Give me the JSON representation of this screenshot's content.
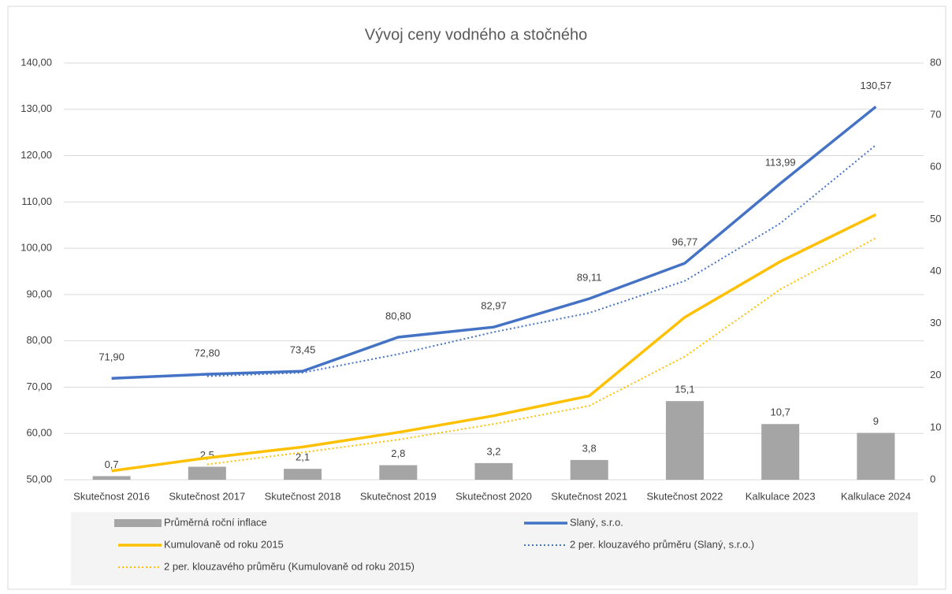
{
  "chart_data": {
    "type": "combo",
    "title": "Vývoj ceny vodného a stočného",
    "categories": [
      "Skutečnost 2016",
      "Skutečnost 2017",
      "Skutečnost 2018",
      "Skutečnost 2019",
      "Skutečnost 2020",
      "Skutečnost 2021",
      "Skutečnost 2022",
      "Kalkulace 2023",
      "Kalkulace 2024"
    ],
    "ylim": [
      50,
      140
    ],
    "yticks": [
      {
        "value": 50,
        "label": "50,00"
      },
      {
        "value": 60,
        "label": "60,00"
      },
      {
        "value": 70,
        "label": "70,00"
      },
      {
        "value": 80,
        "label": "80,00"
      },
      {
        "value": 90,
        "label": "90,00"
      },
      {
        "value": 100,
        "label": "100,00"
      },
      {
        "value": 110,
        "label": "110,00"
      },
      {
        "value": 120,
        "label": "120,00"
      },
      {
        "value": 130,
        "label": "130,00"
      },
      {
        "value": 140,
        "label": "140,00"
      }
    ],
    "y2lim": [
      0,
      80
    ],
    "y2ticks": [
      0,
      10,
      20,
      30,
      40,
      50,
      60,
      70,
      80
    ],
    "legend": "bottom",
    "series": [
      {
        "name": "Průměrná roční inflace",
        "type": "bar",
        "axis": "y2",
        "color": "#a5a5a5",
        "values": [
          0.7,
          2.5,
          2.1,
          2.8,
          3.2,
          3.8,
          15.1,
          10.7,
          9
        ],
        "value_labels": [
          "0,7",
          "2,5",
          "2,1",
          "2,8",
          "3,2",
          "3,8",
          "15,1",
          "10,7",
          "9"
        ]
      },
      {
        "name": "Slaný, s.r.o.",
        "type": "line",
        "axis": "y",
        "color": "#4472c4",
        "dash": "solid",
        "values": [
          71.9,
          72.8,
          73.45,
          80.8,
          82.97,
          89.11,
          96.77,
          113.99,
          130.57
        ],
        "value_labels": [
          "71,90",
          "72,80",
          "73,45",
          "80,80",
          "82,97",
          "89,11",
          "96,77",
          "113,99",
          "130,57"
        ]
      },
      {
        "name": "Kumulovaně od roku 2015",
        "type": "line",
        "axis": "y2",
        "color": "#ffc000",
        "dash": "solid",
        "values": [
          1.7,
          4.2,
          6.3,
          9.1,
          12.3,
          16.1,
          31.2,
          41.9,
          50.9
        ]
      },
      {
        "name": "2 per. klouzavého průměru (Slaný, s.r.o.)",
        "type": "line",
        "axis": "y",
        "color": "#4472c4",
        "dash": "dotted",
        "values": [
          null,
          72.35,
          73.125,
          77.125,
          81.885,
          86.04,
          92.94,
          105.38,
          122.28
        ]
      },
      {
        "name": "2 per. klouzavého průměru (Kumulovaně od roku 2015)",
        "type": "line",
        "axis": "y2",
        "color": "#ffc000",
        "dash": "dotted",
        "values": [
          null,
          2.95,
          5.25,
          7.7,
          10.7,
          14.2,
          23.65,
          36.55,
          46.4
        ]
      }
    ]
  }
}
